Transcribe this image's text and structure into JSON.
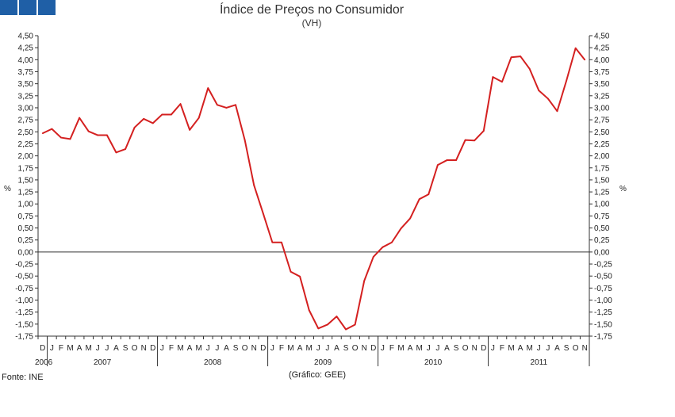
{
  "header": {
    "title": "Índice de Preços no Consumidor",
    "subtitle": "(VH)"
  },
  "footer": {
    "source": "Fonte: INE",
    "credit": "(Gráfico: GEE)"
  },
  "colors": {
    "line": "#d42020",
    "axis": "#333333",
    "logo": "#1f5fa6"
  },
  "chart_data": {
    "type": "line",
    "title": "Índice de Preços no Consumidor",
    "subtitle": "(VH)",
    "ylabel_left": "%",
    "ylabel_right": "%",
    "ylim": [
      -1.75,
      4.5
    ],
    "ystep": 0.25,
    "yticks": [
      "4,50",
      "4,25",
      "4,00",
      "3,75",
      "3,50",
      "3,25",
      "3,00",
      "2,75",
      "2,50",
      "2,25",
      "2,00",
      "1,75",
      "1,50",
      "1,25",
      "1,00",
      "0,75",
      "0,50",
      "0,25",
      "0,00",
      "-0,25",
      "-0,50",
      "-0,75",
      "-1,00",
      "-1,25",
      "-1,50",
      "-1,75"
    ],
    "grid": false,
    "month_labels": [
      "D",
      "J",
      "F",
      "M",
      "A",
      "M",
      "J",
      "J",
      "A",
      "S",
      "O",
      "N",
      "D",
      "J",
      "F",
      "M",
      "A",
      "M",
      "J",
      "J",
      "A",
      "S",
      "O",
      "N",
      "D",
      "J",
      "F",
      "M",
      "A",
      "M",
      "J",
      "J",
      "A",
      "S",
      "O",
      "N",
      "D",
      "J",
      "F",
      "M",
      "A",
      "M",
      "J",
      "J",
      "A",
      "S",
      "O",
      "N",
      "D",
      "J",
      "F",
      "M",
      "A",
      "M",
      "J",
      "J",
      "A",
      "S",
      "O",
      "N"
    ],
    "years": [
      {
        "label": "2006",
        "start": 0,
        "end": 0
      },
      {
        "label": "2007",
        "start": 1,
        "end": 12
      },
      {
        "label": "2008",
        "start": 13,
        "end": 24
      },
      {
        "label": "2009",
        "start": 25,
        "end": 36
      },
      {
        "label": "2010",
        "start": 37,
        "end": 48
      },
      {
        "label": "2011",
        "start": 49,
        "end": 59
      }
    ],
    "series": [
      {
        "values": [
          2.47,
          2.56,
          2.38,
          2.35,
          2.79,
          2.51,
          2.43,
          2.43,
          2.07,
          2.14,
          2.59,
          2.77,
          2.68,
          2.86,
          2.86,
          3.08,
          2.54,
          2.79,
          3.41,
          3.06,
          3.0,
          3.06,
          2.33,
          1.39,
          0.8,
          0.2,
          0.2,
          -0.41,
          -0.51,
          -1.21,
          -1.59,
          -1.51,
          -1.34,
          -1.61,
          -1.51,
          -0.6,
          -0.1,
          0.1,
          0.2,
          0.49,
          0.7,
          1.1,
          1.2,
          1.81,
          1.91,
          1.91,
          2.33,
          2.32,
          2.52,
          3.64,
          3.54,
          4.05,
          4.07,
          3.81,
          3.36,
          3.19,
          2.93,
          3.56,
          4.24,
          4.0
        ]
      }
    ]
  }
}
